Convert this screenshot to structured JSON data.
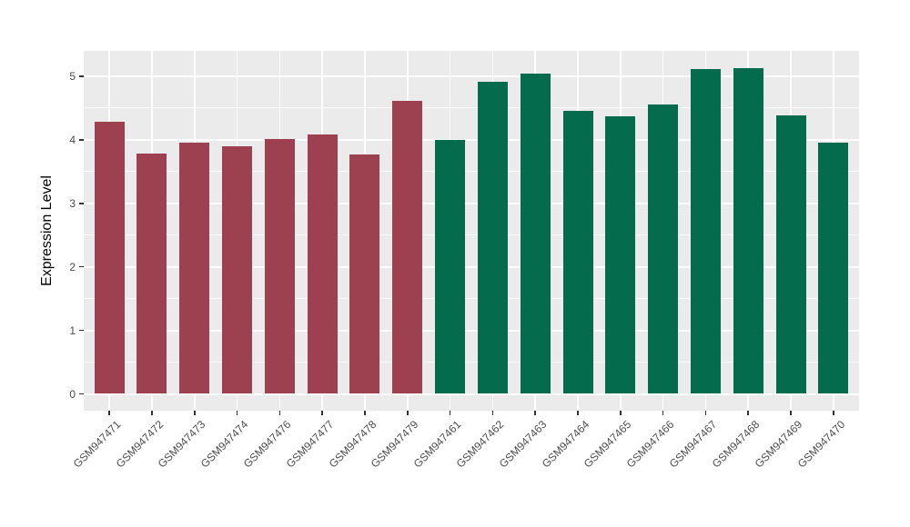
{
  "chart_data": {
    "type": "bar",
    "title": "",
    "xlabel": "",
    "ylabel": "Expression Level",
    "categories": [
      "GSM947471",
      "GSM947472",
      "GSM947473",
      "GSM947474",
      "GSM947476",
      "GSM947477",
      "GSM947478",
      "GSM947479",
      "GSM947461",
      "GSM947462",
      "GSM947463",
      "GSM947464",
      "GSM947465",
      "GSM947466",
      "GSM947467",
      "GSM947468",
      "GSM947469",
      "GSM947470"
    ],
    "values": [
      4.28,
      3.78,
      3.95,
      3.9,
      4.01,
      4.09,
      3.77,
      4.61,
      4.0,
      4.91,
      5.05,
      4.46,
      4.37,
      4.55,
      5.12,
      5.13,
      4.39,
      3.96
    ],
    "bar_colors": [
      "#9D4150",
      "#9D4150",
      "#9D4150",
      "#9D4150",
      "#9D4150",
      "#9D4150",
      "#9D4150",
      "#9D4150",
      "#046B4C",
      "#046B4C",
      "#046B4C",
      "#046B4C",
      "#046B4C",
      "#046B4C",
      "#046B4C",
      "#046B4C",
      "#046B4C",
      "#046B4C"
    ],
    "group_colors": {
      "left_group": "#9D4150",
      "right_group": "#046B4C"
    },
    "yticks": [
      0,
      1,
      2,
      3,
      4,
      5
    ],
    "yticks_minor": [
      0.5,
      1.5,
      2.5,
      3.5,
      4.5
    ],
    "ylim": [
      0,
      5.4
    ],
    "grid": true,
    "legend": "none",
    "panel_bg": "#EBEBEB",
    "grid_color": "#FFFFFF",
    "tick_color": "#333333",
    "axis_text_color": "#4D4D4D"
  }
}
